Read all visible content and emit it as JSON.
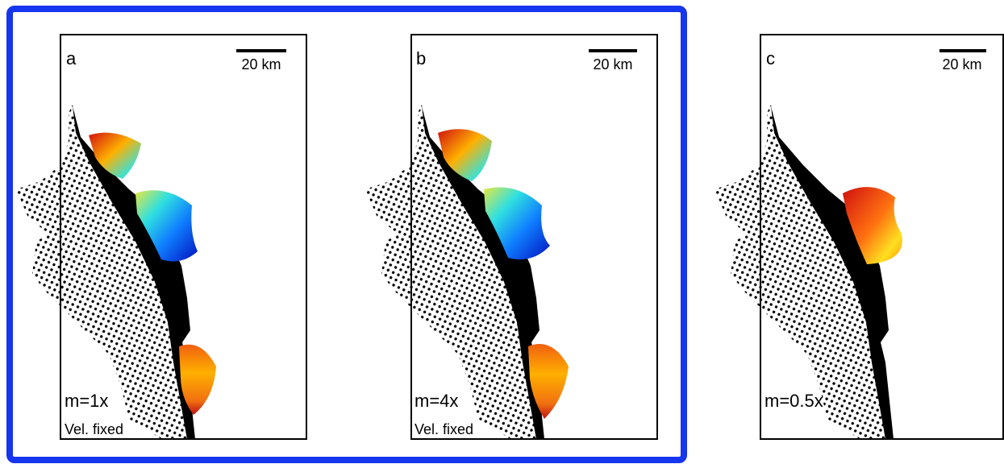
{
  "panels": [
    {
      "label": "a",
      "scale": "20 km",
      "model": "m=1x",
      "note": "Vel. fixed"
    },
    {
      "label": "b",
      "scale": "20 km",
      "model": "m=4x",
      "note": "Vel. fixed"
    },
    {
      "label": "c",
      "scale": "20 km",
      "model": "m=0.5x"
    }
  ]
}
